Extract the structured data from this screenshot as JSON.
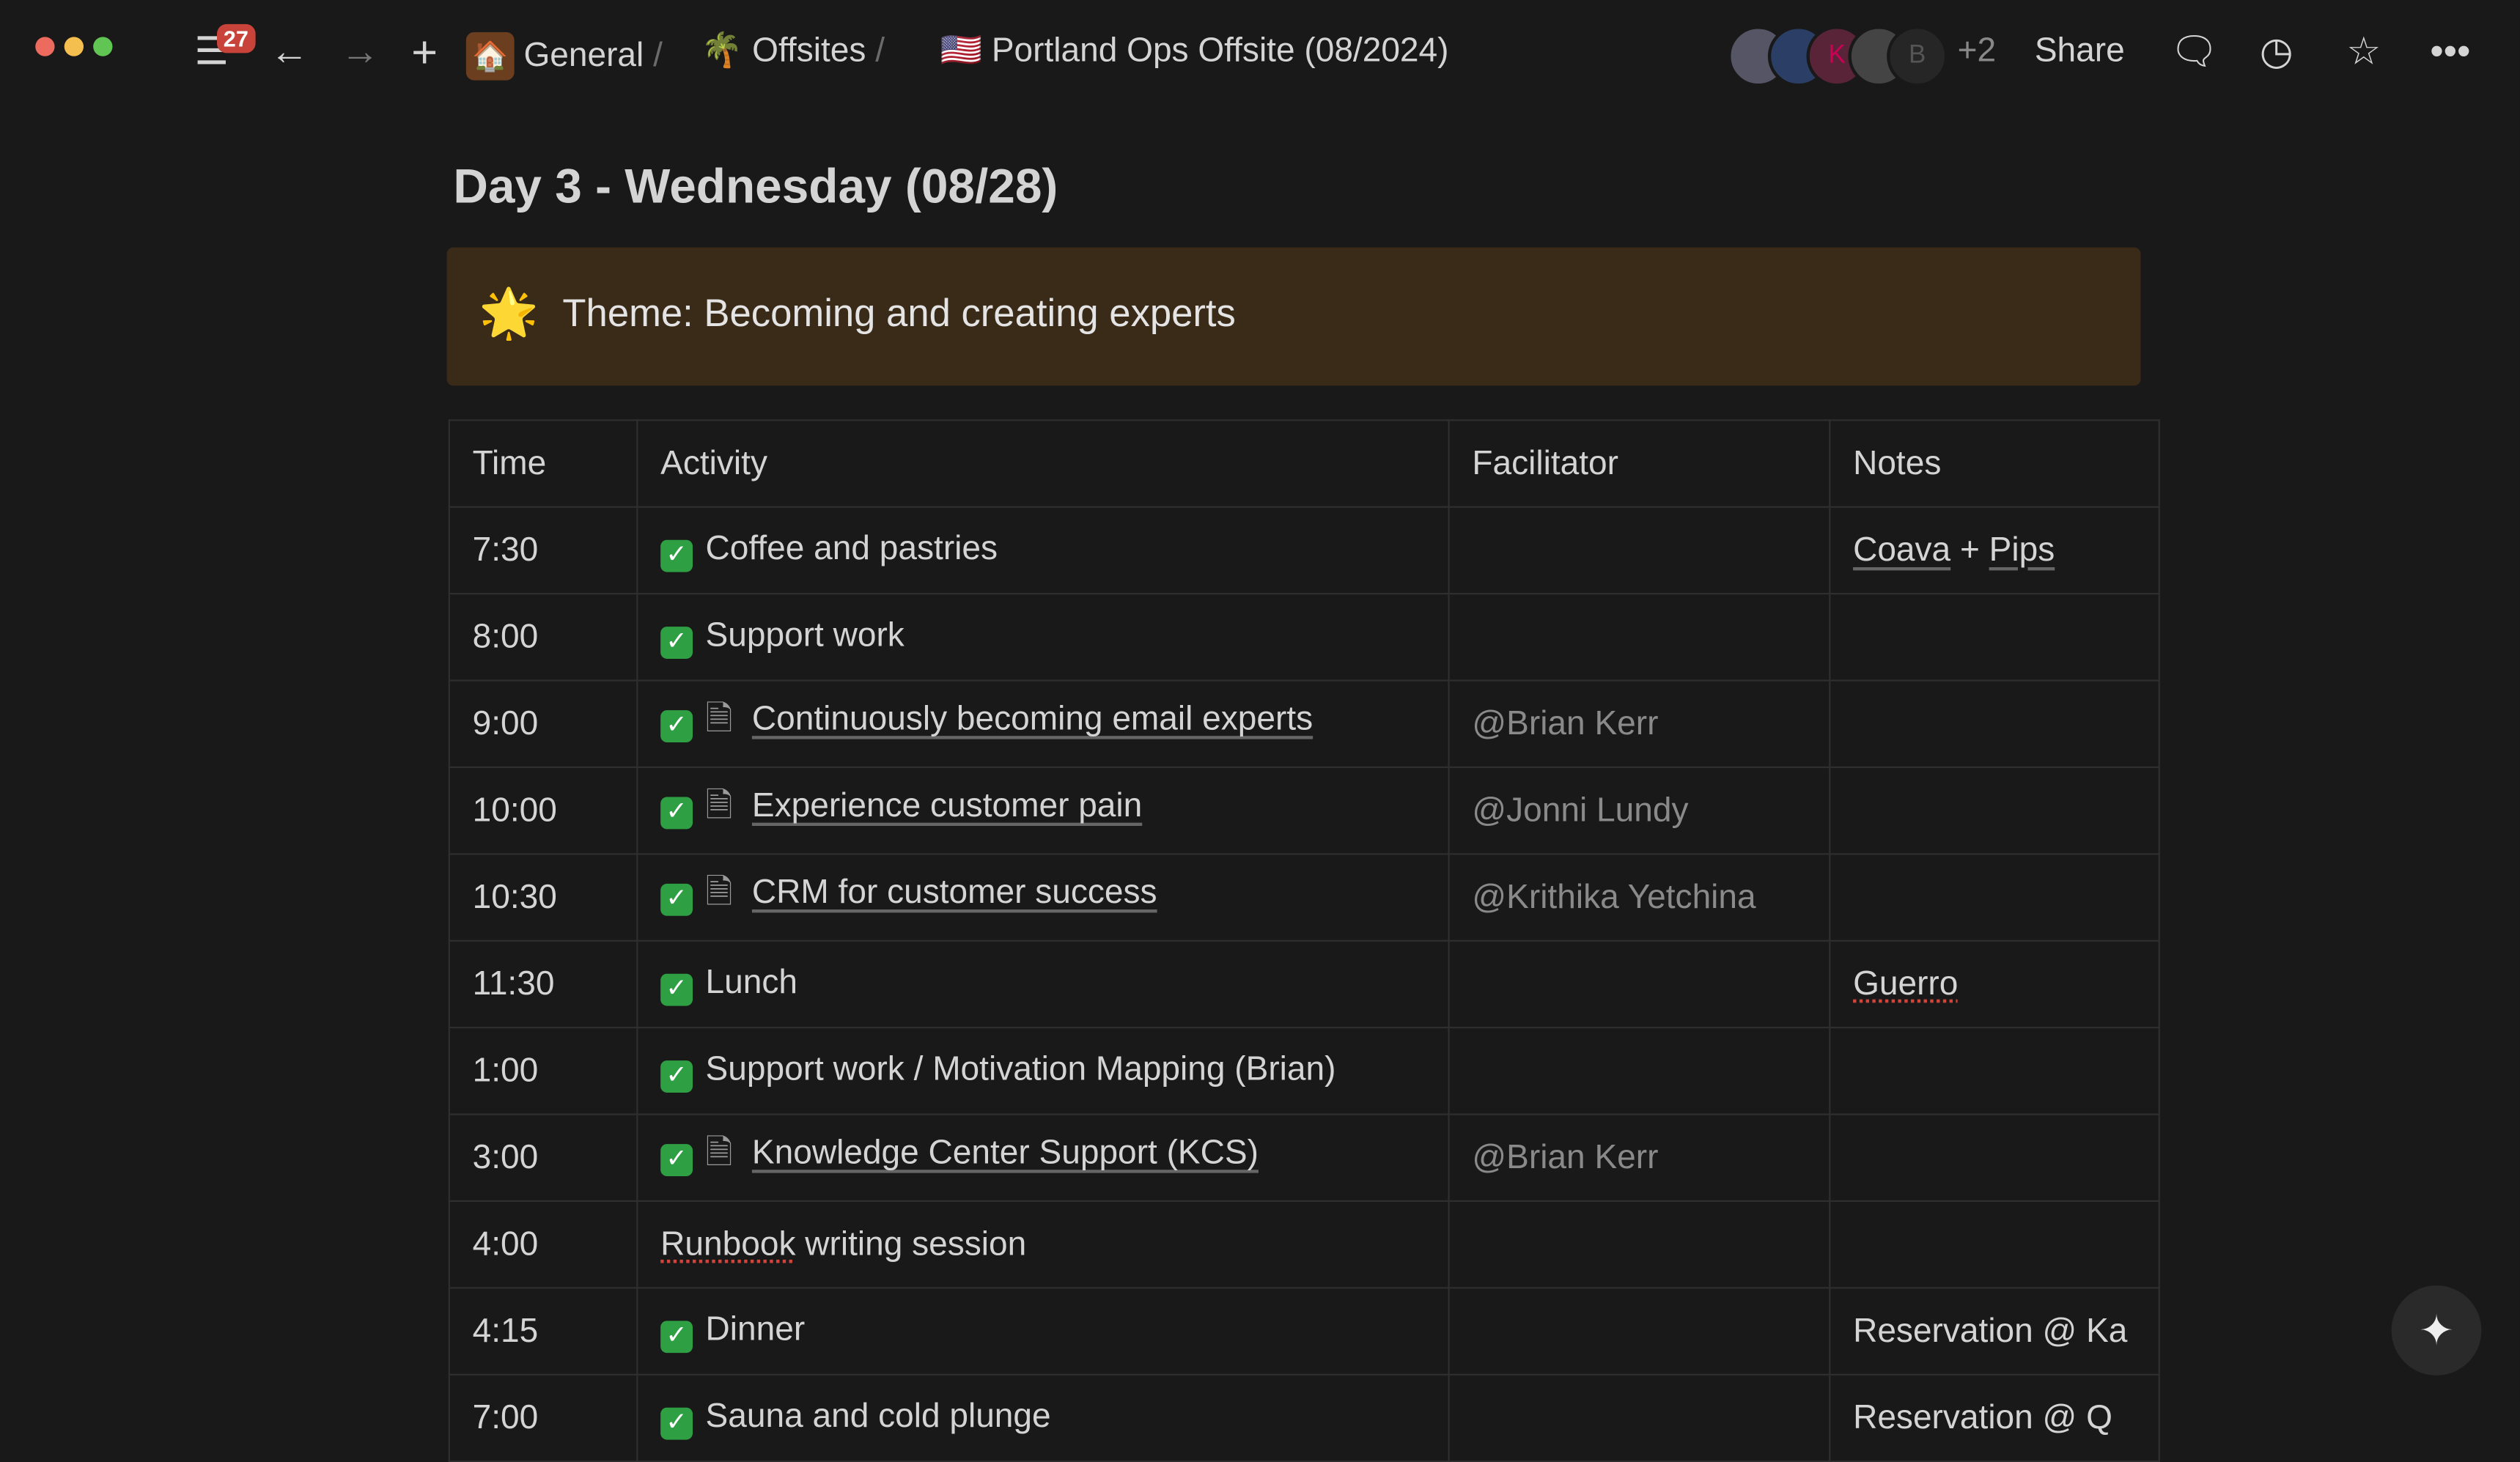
{
  "topbar": {
    "notification_count": "27",
    "breadcrumbs": [
      {
        "icon": "🏠",
        "label": "General"
      },
      {
        "icon": "🌴",
        "label": "Offsites"
      },
      {
        "icon": "🇺🇸",
        "label": "Portland Ops Offsite (08/2024)"
      }
    ],
    "avatars": [
      "",
      "",
      "K",
      "",
      "B"
    ],
    "extra_count": "+2",
    "share": "Share"
  },
  "page": {
    "title": "Day 3 - Wednesday (08/28)",
    "callout_icon": "🌟",
    "callout": "Theme: Becoming and creating experts"
  },
  "table": {
    "headers": [
      "Time",
      "Activity",
      "Facilitator",
      "Notes"
    ],
    "rows": [
      {
        "time": "7:30",
        "done": true,
        "doc": false,
        "activity": "Coffee and pastries",
        "facilitator": "",
        "notes": [
          "Coava",
          " + ",
          "Pips"
        ]
      },
      {
        "time": "8:00",
        "done": true,
        "doc": false,
        "activity": "Support work",
        "facilitator": "",
        "notes": []
      },
      {
        "time": "9:00",
        "done": true,
        "doc": true,
        "activity": "Continuously becoming email experts",
        "facilitator": "@Brian Kerr",
        "notes": []
      },
      {
        "time": "10:00",
        "done": true,
        "doc": true,
        "activity": "Experience customer pain",
        "facilitator": "@Jonni Lundy",
        "notes": []
      },
      {
        "time": "10:30",
        "done": true,
        "doc": true,
        "activity": "CRM for customer success",
        "facilitator": "@Krithika Yetchina",
        "notes": []
      },
      {
        "time": "11:30",
        "done": true,
        "doc": false,
        "activity": "Lunch",
        "facilitator": "",
        "notes": [
          "Guerro"
        ]
      },
      {
        "time": "1:00",
        "done": true,
        "doc": false,
        "activity": "Support work / Motivation Mapping (Brian)",
        "facilitator": "",
        "notes": []
      },
      {
        "time": "3:00",
        "done": true,
        "doc": true,
        "activity": "Knowledge Center Support (KCS)",
        "facilitator": "@Brian Kerr",
        "notes": []
      },
      {
        "time": "4:00",
        "done": false,
        "doc": false,
        "activity": "Runbook writing session",
        "facilitator": "",
        "notes": []
      },
      {
        "time": "4:15",
        "done": true,
        "doc": false,
        "activity": "Dinner",
        "facilitator": "",
        "notes": [
          "Reservation @ Ka"
        ]
      },
      {
        "time": "7:00",
        "done": true,
        "doc": false,
        "activity": "Sauna and cold plunge",
        "facilitator": "",
        "notes": [
          "Reservation @ Q"
        ]
      }
    ]
  }
}
